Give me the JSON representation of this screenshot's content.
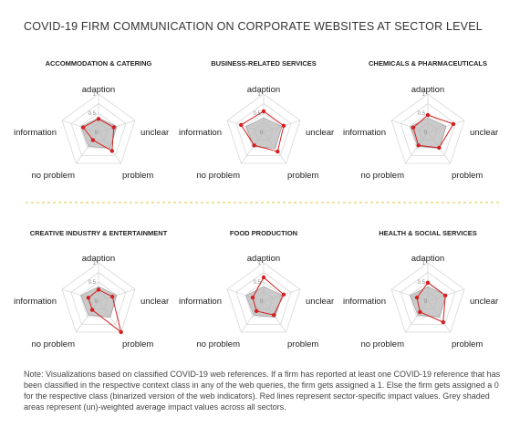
{
  "title": "COVID-19 FIRM COMMUNICATION ON CORPORATE WEBSITES AT SECTOR LEVEL",
  "note": "Note: Visualizations based on classified COVID-19 web references. If a firm has reported at least one COVID-19 reference that has been classified in the respective context class in any of the web queries, the firm gets assigned a 1. Else the firm gets assigned a 0 for the respective class (binarized version of the web indicators). Red lines represent sector-specific impact values. Grey shaded areas represent (un)-weighted average impact values across all sectors.",
  "colors": {
    "sector": "#d42020",
    "average_fill": "#b8b8b8",
    "grid": "#d8d8d8",
    "separator": "#d8c830"
  },
  "chart_data": [
    {
      "type": "radar",
      "title": "ACCOMMODATION & CATERING",
      "axes": [
        "adaption",
        "unclear",
        "problem",
        "no problem",
        "information"
      ],
      "tick_labels": [
        "0",
        "0.5",
        "1"
      ],
      "range": [
        0,
        1
      ],
      "series": [
        {
          "values": [
            0.35,
            0.42,
            0.6,
            0.25,
            0.42
          ]
        },
        {
          "values": [
            0.38,
            0.5,
            0.52,
            0.45,
            0.48
          ]
        }
      ]
    },
    {
      "type": "radar",
      "title": "BUSINESS-RELATED SERVICES",
      "axes": [
        "adaption",
        "unclear",
        "problem",
        "no problem",
        "information"
      ],
      "tick_labels": [
        "0",
        "0.5",
        "1"
      ],
      "range": [
        0,
        1
      ],
      "series": [
        {
          "values": [
            0.55,
            0.55,
            0.62,
            0.42,
            0.62
          ]
        },
        {
          "values": [
            0.38,
            0.5,
            0.52,
            0.45,
            0.48
          ]
        }
      ]
    },
    {
      "type": "radar",
      "title": "CHEMICALS & PHARMACEUTICALS",
      "axes": [
        "adaption",
        "unclear",
        "problem",
        "no problem",
        "information"
      ],
      "tick_labels": [
        "0",
        "0.5",
        "1"
      ],
      "range": [
        0,
        1
      ],
      "series": [
        {
          "values": [
            0.45,
            0.7,
            0.5,
            0.42,
            0.4
          ]
        },
        {
          "values": [
            0.38,
            0.5,
            0.52,
            0.45,
            0.48
          ]
        }
      ]
    },
    {
      "type": "radar",
      "title": "CREATIVE INDUSTRY & ENTERTAINMENT",
      "axes": [
        "adaption",
        "unclear",
        "problem",
        "no problem",
        "information"
      ],
      "tick_labels": [
        "0",
        "0.5",
        "1"
      ],
      "range": [
        0,
        1
      ],
      "series": [
        {
          "values": [
            0.3,
            0.38,
            1.0,
            0.28,
            0.28
          ]
        },
        {
          "values": [
            0.38,
            0.5,
            0.52,
            0.45,
            0.48
          ]
        }
      ]
    },
    {
      "type": "radar",
      "title": "FOOD PRODUCTION",
      "axes": [
        "adaption",
        "unclear",
        "problem",
        "no problem",
        "information"
      ],
      "tick_labels": [
        "0",
        "0.5",
        "1"
      ],
      "range": [
        0,
        1
      ],
      "series": [
        {
          "values": [
            0.62,
            0.55,
            0.45,
            0.32,
            0.3
          ]
        },
        {
          "values": [
            0.38,
            0.5,
            0.52,
            0.45,
            0.48
          ]
        }
      ]
    },
    {
      "type": "radar",
      "title": "HEALTH & SOCIAL SERVICES",
      "axes": [
        "adaption",
        "unclear",
        "problem",
        "no problem",
        "information"
      ],
      "tick_labels": [
        "0",
        "0.5",
        "1"
      ],
      "range": [
        0,
        1
      ],
      "series": [
        {
          "values": [
            0.48,
            0.48,
            0.68,
            0.35,
            0.3
          ]
        },
        {
          "values": [
            0.38,
            0.5,
            0.52,
            0.45,
            0.48
          ]
        }
      ]
    }
  ]
}
